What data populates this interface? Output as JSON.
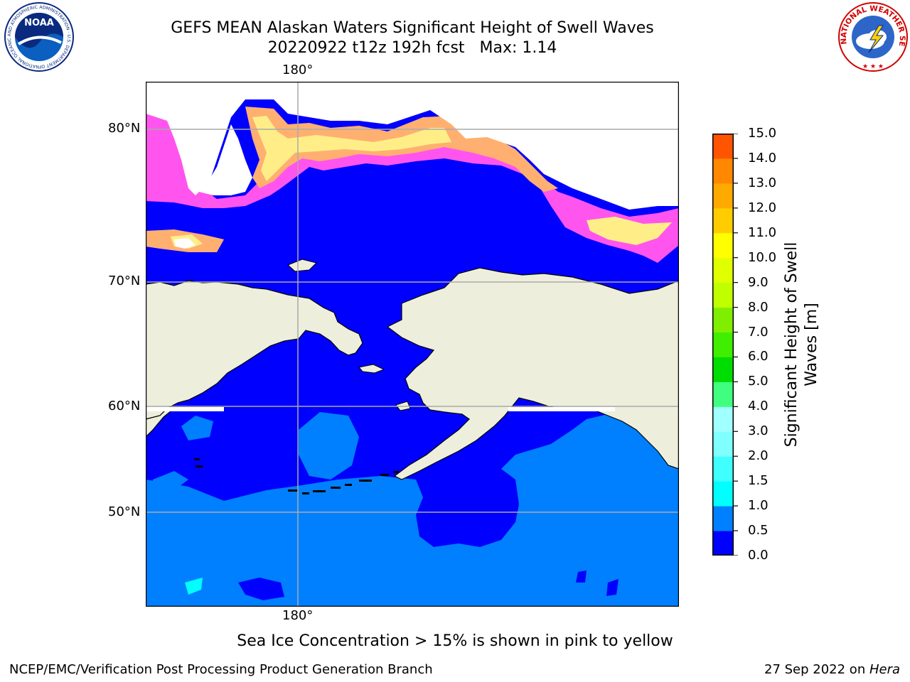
{
  "title": {
    "line1": "GEFS MEAN Alaskan Waters Significant Height of Swell Waves",
    "line2_date": "20220922 t12z 192h fcst",
    "line2_max": "Max: 1.14"
  },
  "map": {
    "lon_labels": {
      "top": "180°",
      "bottom": "180°"
    },
    "lat_labels": [
      "80°N",
      "70°N",
      "60°N",
      "50°N"
    ],
    "colors": {
      "ocean_low": "#0000ff",
      "ocean_mid": "#0080ff",
      "ocean_cyan": "#00ffff",
      "land": "#eeeedd",
      "sea_ice_pink": "#ff44ee",
      "sea_ice_orange": "#ffbb66",
      "sea_ice_yellow": "#ffee88",
      "grid": "#aaaaaa"
    }
  },
  "colorbar": {
    "label_line1": "Significant Height of Swell",
    "label_line2": "Waves [m]",
    "ticks": [
      "0.0",
      "0.5",
      "1.0",
      "1.5",
      "2.0",
      "3.0",
      "4.0",
      "5.0",
      "6.0",
      "7.0",
      "8.0",
      "9.0",
      "10.0",
      "11.0",
      "12.0",
      "13.0",
      "14.0",
      "15.0"
    ],
    "colors": [
      "#0000ff",
      "#0080ff",
      "#00ffff",
      "#40ffff",
      "#80ffff",
      "#a0ffff",
      "#40ff80",
      "#00dd00",
      "#40ee00",
      "#80ee00",
      "#c0ff00",
      "#e0ff00",
      "#ffff00",
      "#ffcc00",
      "#ffaa00",
      "#ff8800",
      "#ff5500",
      "#ff3300",
      "#ff0000"
    ]
  },
  "note": "Sea Ice Concentration > 15% is shown in pink to yellow",
  "footer": {
    "left": "NCEP/EMC/Verification Post Processing Product Generation Branch",
    "right_date": "27 Sep 2022 on ",
    "right_host": "Hera"
  },
  "logos": {
    "noaa_text": "NOAA",
    "noaa_ring": "NATIONAL OCEANIC AND ATMOSPHERIC ADMINISTRATION · U.S. DEPARTMENT OF COMMERCE",
    "nws_ring": "NATIONAL WEATHER SERVICE"
  }
}
